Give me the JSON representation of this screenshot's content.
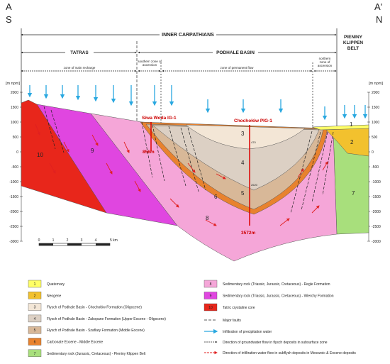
{
  "header": {
    "left": {
      "point": "A",
      "direction": "S"
    },
    "right": {
      "point": "A'",
      "direction": "N"
    }
  },
  "regions": {
    "inner": "INNER CARPATHIANS",
    "klippen": [
      "PIENINY",
      "KLIPPEN",
      "BELT"
    ],
    "tatras": "TATRAS",
    "podhale": "PODHALE BASIN"
  },
  "zones": {
    "recharge": "zone of main recharge",
    "southern": [
      "southern zone of",
      "ascension"
    ],
    "permanent": "zone of permanent flow",
    "northern": [
      "northern",
      "zone of",
      "ascension"
    ]
  },
  "axis": {
    "unit": "[m npm]",
    "ticks": [
      2000,
      1500,
      1000,
      500,
      0,
      -500,
      -1000,
      -1500,
      -2000,
      -2500,
      -3000
    ]
  },
  "wells": [
    {
      "name": "Siwa Woda IG-1",
      "depth": "856m"
    },
    {
      "name": "Chochołów PIG-1",
      "depth": "3572m"
    }
  ],
  "depth_marks": [
    "470",
    "2620"
  ],
  "scale": [
    "0",
    "1",
    "2",
    "3",
    "4",
    "5 km"
  ],
  "legend": {
    "units": [
      {
        "number": "1",
        "label": "Quaternary",
        "color": "#ffff66"
      },
      {
        "number": "2",
        "label": "Neogene",
        "color": "#f2c12e"
      },
      {
        "number": "3",
        "label": "Flysch of Podhale Basin - Chochołów Formation (Oligocene)",
        "color": "#f3e6d6"
      },
      {
        "number": "4",
        "label": "Flysch of Podhale Basin - Zakopane Formation (Upper Eocene - Oligocene)",
        "color": "#dcd0c4"
      },
      {
        "number": "5",
        "label": "Flysch of Podhale Basin - Szaflary Formation (Middle Eocene)",
        "color": "#d8b898"
      },
      {
        "number": "6",
        "label": "Carbonate Eocene - Middle Eocene",
        "color": "#e8822e"
      },
      {
        "number": "7",
        "label": "Sedimentary rock (Jurassic, Cretaceous) - Pieniny Klippen Belt",
        "color": "#a8df7c"
      },
      {
        "number": "8",
        "label": "Sedimentary rock (Triassic, Jurassic, Cretaceous) - Reglе Formation",
        "color": "#f5a6d8"
      },
      {
        "number": "9",
        "label": "Sedimentary rock (Triassic, Jurassic, Cretaceous) - Wierchy Formation",
        "color": "#e046e0"
      },
      {
        "number": "10",
        "label": "Tatric crystaline core",
        "color": "#e8261b"
      }
    ],
    "symbols": [
      "Major faults",
      "Infiltration of precipitation water",
      "Direction of groundwater flow in flysch deposits in subsurface zone",
      "Direction of infiltration water flow in subflysh deposits in Mesozoic & Eocene deposits"
    ]
  }
}
